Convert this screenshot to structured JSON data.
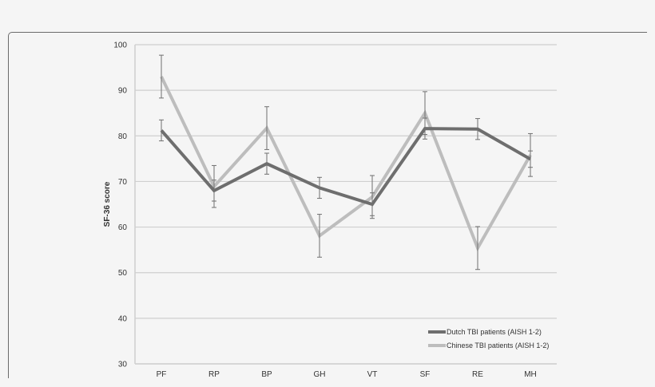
{
  "chart_data": {
    "type": "line",
    "title": "",
    "xlabel": "",
    "ylabel": "SF-36 score",
    "ylim": [
      30,
      100
    ],
    "yticks": [
      30,
      40,
      50,
      60,
      70,
      80,
      90,
      100
    ],
    "grid": true,
    "legend_position": "lower right",
    "categories": [
      "PF",
      "RP",
      "BP",
      "GH",
      "VT",
      "SF",
      "RE",
      "MH"
    ],
    "series": [
      {
        "name": "Dutch TBI patients (AISH 1-2)",
        "color": "#6e6e6e",
        "values": [
          81.2,
          68.0,
          73.9,
          68.6,
          65.0,
          81.6,
          81.5,
          74.9
        ],
        "error": [
          2.3,
          2.3,
          2.3,
          2.3,
          2.5,
          2.3,
          2.3,
          1.8
        ]
      },
      {
        "name": "Chinese TBI patients (AISH 1-2)",
        "color": "#bdbdbd",
        "values": [
          93.0,
          68.9,
          81.7,
          58.1,
          66.6,
          85.0,
          55.4,
          75.8
        ],
        "error": [
          4.7,
          4.6,
          4.7,
          4.7,
          4.7,
          4.7,
          4.7,
          4.7
        ]
      }
    ]
  }
}
